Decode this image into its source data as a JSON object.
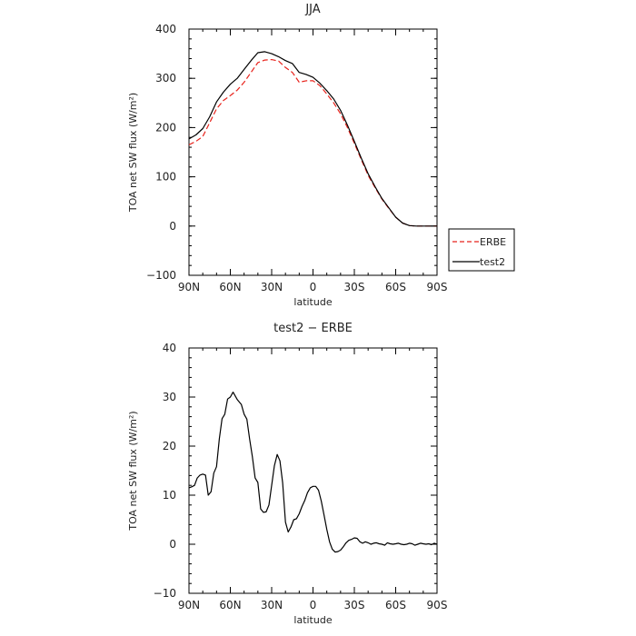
{
  "chart_data": [
    {
      "type": "line",
      "title": "JJA",
      "xlabel": "latitude",
      "ylabel": "TOA net SW flux (W/m²)",
      "xlim": [
        90,
        -90
      ],
      "ylim": [
        -100,
        400
      ],
      "xticks": [
        90,
        60,
        30,
        0,
        -30,
        -60,
        -90
      ],
      "xtick_labels": [
        "90N",
        "60N",
        "30N",
        "0",
        "30S",
        "60S",
        "90S"
      ],
      "yticks": [
        -100,
        0,
        100,
        200,
        300,
        400
      ],
      "ytick_labels": [
        "−100",
        "0",
        "100",
        "200",
        "300",
        "400"
      ],
      "legend": "right",
      "series": [
        {
          "name": "ERBE",
          "color": "#e8231c",
          "dash": "dashed",
          "x": [
            90,
            85,
            80,
            75,
            70,
            65,
            60,
            55,
            50,
            45,
            40,
            35,
            30,
            25,
            20,
            15,
            10,
            5,
            0,
            -5,
            -10,
            -15,
            -20,
            -25,
            -30,
            -35,
            -40,
            -45,
            -50,
            -55,
            -60,
            -65,
            -70,
            -75,
            -80,
            -85,
            -90
          ],
          "values": [
            165,
            172,
            182,
            210,
            238,
            255,
            265,
            276,
            292,
            312,
            332,
            337,
            338,
            335,
            322,
            312,
            292,
            295,
            295,
            285,
            268,
            250,
            228,
            200,
            168,
            135,
            103,
            78,
            55,
            36,
            18,
            6,
            1,
            0,
            0,
            0,
            0
          ]
        },
        {
          "name": "test2",
          "color": "#000000",
          "dash": "solid",
          "x": [
            90,
            85,
            80,
            75,
            70,
            65,
            60,
            55,
            50,
            45,
            40,
            35,
            30,
            25,
            20,
            15,
            10,
            5,
            0,
            -5,
            -10,
            -15,
            -20,
            -25,
            -30,
            -35,
            -40,
            -45,
            -50,
            -55,
            -60,
            -65,
            -70,
            -75,
            -80,
            -85,
            -90
          ],
          "values": [
            177,
            185,
            198,
            222,
            252,
            272,
            288,
            300,
            318,
            336,
            352,
            354,
            350,
            344,
            336,
            330,
            312,
            308,
            302,
            290,
            275,
            258,
            235,
            205,
            172,
            138,
            106,
            80,
            56,
            37,
            18,
            6,
            1,
            0,
            0,
            0,
            0
          ]
        }
      ]
    },
    {
      "type": "line",
      "title": "test2 − ERBE",
      "xlabel": "latitude",
      "ylabel": "TOA net SW flux (W/m²)",
      "xlim": [
        90,
        -90
      ],
      "ylim": [
        -10,
        40
      ],
      "xticks": [
        90,
        60,
        30,
        0,
        -30,
        -60,
        -90
      ],
      "xtick_labels": [
        "90N",
        "60N",
        "30N",
        "0",
        "30S",
        "60S",
        "90S"
      ],
      "yticks": [
        -10,
        0,
        10,
        20,
        30,
        40
      ],
      "ytick_labels": [
        "−10",
        "0",
        "10",
        "20",
        "30",
        "40"
      ],
      "series": [
        {
          "color": "#000000",
          "dash": "solid",
          "x": [
            90,
            88,
            86,
            84,
            82,
            80,
            78,
            76,
            74,
            72,
            70,
            68,
            66,
            64,
            62,
            60,
            58,
            55,
            52,
            50,
            48,
            46,
            44,
            42,
            40,
            38,
            36,
            34,
            32,
            30,
            28,
            26,
            24,
            22,
            20,
            18,
            16,
            14,
            12,
            10,
            8,
            6,
            4,
            2,
            0,
            -2,
            -4,
            -6,
            -8,
            -10,
            -12,
            -14,
            -16,
            -18,
            -20,
            -22,
            -24,
            -26,
            -28,
            -30,
            -32,
            -34,
            -36,
            -38,
            -40,
            -42,
            -44,
            -46,
            -48,
            -50,
            -52,
            -54,
            -56,
            -58,
            -60,
            -62,
            -64,
            -66,
            -68,
            -70,
            -72,
            -74,
            -76,
            -78,
            -80,
            -82,
            -84,
            -86,
            -88,
            -90
          ],
          "values": [
            11.5,
            11.7,
            12.0,
            13.5,
            14.1,
            14.3,
            14.1,
            10.0,
            10.7,
            14.5,
            15.8,
            21.5,
            25.6,
            26.5,
            29.6,
            30.0,
            31.0,
            29.5,
            28.5,
            26.5,
            25.5,
            21.5,
            17.8,
            13.5,
            12.6,
            7.2,
            6.5,
            6.6,
            8.0,
            12.0,
            16.0,
            18.3,
            17.0,
            12.5,
            4.5,
            2.5,
            3.5,
            5.0,
            5.2,
            6.2,
            7.7,
            8.9,
            10.5,
            11.5,
            11.8,
            11.8,
            11.0,
            8.8,
            6.0,
            3.0,
            0.5,
            -1.0,
            -1.6,
            -1.5,
            -1.2,
            -0.5,
            0.3,
            0.8,
            1.0,
            1.3,
            1.2,
            0.5,
            0.2,
            0.5,
            0.3,
            0.0,
            0.2,
            0.3,
            0.1,
            0.0,
            -0.2,
            0.3,
            0.1,
            0.0,
            0.1,
            0.2,
            0.0,
            -0.1,
            0.0,
            0.2,
            0.1,
            -0.2,
            0.0,
            0.2,
            0.1,
            0.0,
            0.1,
            -0.1,
            0.2,
            0.0
          ]
        }
      ]
    }
  ]
}
